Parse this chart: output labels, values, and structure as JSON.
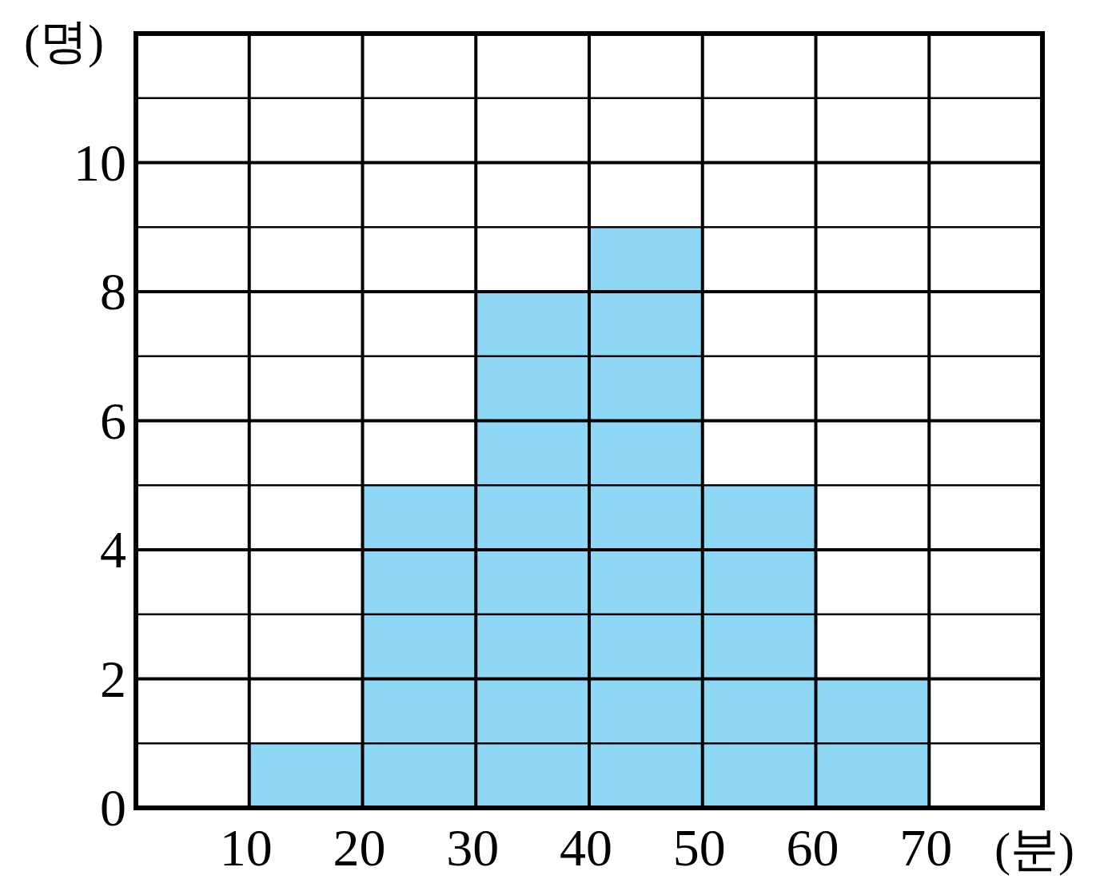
{
  "chart_data": {
    "type": "histogram",
    "xlabel": "(분)",
    "ylabel": "(명)",
    "bins": [
      10,
      20,
      30,
      40,
      50,
      60,
      70
    ],
    "values": [
      1,
      5,
      8,
      9,
      5,
      2
    ],
    "color": "#8fd8f5",
    "xlim": [
      0,
      80
    ],
    "ylim": [
      0,
      12
    ],
    "xticks": [
      {
        "value": 0,
        "label": null
      },
      10,
      20,
      30,
      40,
      50,
      60,
      70,
      {
        "value": 80,
        "label": null
      }
    ],
    "yticks": [
      0,
      {
        "value": 1,
        "label": null
      },
      2,
      {
        "value": 3,
        "label": null
      },
      4,
      {
        "value": 5,
        "label": null
      },
      6,
      {
        "value": 7,
        "label": null
      },
      8,
      {
        "value": 9,
        "label": null
      },
      10,
      {
        "value": 11,
        "label": null
      },
      {
        "value": 12,
        "label": null
      }
    ],
    "grid": true
  }
}
